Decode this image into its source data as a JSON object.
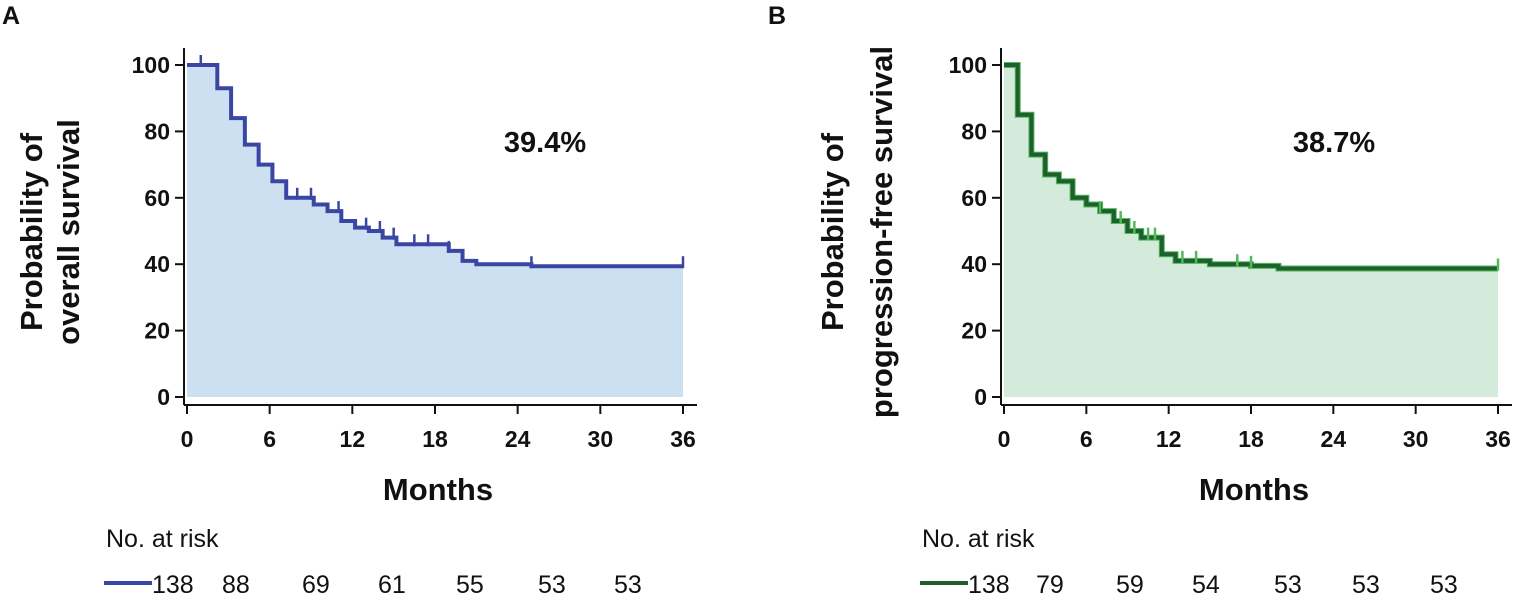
{
  "chart_data": [
    {
      "type": "line",
      "panel_label": "A",
      "title": "",
      "xlabel": "Months",
      "ylabel_lines": [
        "Probability of",
        "overall survival"
      ],
      "xlim": [
        0,
        36
      ],
      "ylim": [
        0,
        100
      ],
      "xticks": [
        0,
        6,
        12,
        18,
        24,
        30,
        36
      ],
      "yticks": [
        0,
        20,
        40,
        60,
        80,
        100
      ],
      "x_tick_labels": [
        "0",
        "6",
        "12",
        "18",
        "24",
        "30",
        "36"
      ],
      "y_tick_labels": [
        "0",
        "20",
        "40",
        "60",
        "80",
        "100"
      ],
      "annotation": "39.4%",
      "grid": false,
      "series": [
        {
          "name": "Overall survival",
          "step_points": [
            [
              0,
              100
            ],
            [
              2.2,
              100
            ],
            [
              2.2,
              93
            ],
            [
              3.2,
              93
            ],
            [
              3.2,
              84
            ],
            [
              4.2,
              84
            ],
            [
              4.2,
              76
            ],
            [
              5.2,
              76
            ],
            [
              5.2,
              70
            ],
            [
              6.2,
              70
            ],
            [
              6.2,
              65
            ],
            [
              7.2,
              65
            ],
            [
              7.2,
              60
            ],
            [
              9.2,
              60
            ],
            [
              9.2,
              58
            ],
            [
              10.2,
              58
            ],
            [
              10.2,
              56
            ],
            [
              11.2,
              56
            ],
            [
              11.2,
              53
            ],
            [
              12.2,
              53
            ],
            [
              12.2,
              51
            ],
            [
              13.2,
              51
            ],
            [
              13.2,
              50
            ],
            [
              14.2,
              50
            ],
            [
              14.2,
              48
            ],
            [
              15.2,
              48
            ],
            [
              15.2,
              46
            ],
            [
              19,
              46
            ],
            [
              19,
              44
            ],
            [
              20,
              44
            ],
            [
              20,
              41
            ],
            [
              21,
              41
            ],
            [
              21,
              40
            ],
            [
              25,
              40
            ],
            [
              25,
              39.4
            ],
            [
              36,
              39.4
            ]
          ],
          "censor_x": [
            1,
            8,
            9,
            11,
            13,
            14,
            15,
            16.5,
            17.5,
            19,
            25,
            36
          ]
        }
      ],
      "risk_table": {
        "header": "No. at risk",
        "values": [
          "138",
          "88",
          "69",
          "61",
          "55",
          "53",
          "53"
        ]
      }
    },
    {
      "type": "line",
      "panel_label": "B",
      "title": "",
      "xlabel": "Months",
      "ylabel_lines": [
        "Probability of",
        "progression-free survival"
      ],
      "xlim": [
        0,
        36
      ],
      "ylim": [
        0,
        100
      ],
      "xticks": [
        0,
        6,
        12,
        18,
        24,
        30,
        36
      ],
      "yticks": [
        0,
        20,
        40,
        60,
        80,
        100
      ],
      "x_tick_labels": [
        "0",
        "6",
        "12",
        "18",
        "24",
        "30",
        "36"
      ],
      "y_tick_labels": [
        "0",
        "20",
        "40",
        "60",
        "80",
        "100"
      ],
      "annotation": "38.7%",
      "grid": false,
      "series": [
        {
          "name": "Progression-free survival",
          "step_points": [
            [
              0,
              100
            ],
            [
              1,
              100
            ],
            [
              1,
              85
            ],
            [
              2,
              85
            ],
            [
              2,
              73
            ],
            [
              3,
              73
            ],
            [
              3,
              67
            ],
            [
              4,
              67
            ],
            [
              4,
              65
            ],
            [
              5,
              65
            ],
            [
              5,
              60
            ],
            [
              6,
              60
            ],
            [
              6,
              58
            ],
            [
              7,
              58
            ],
            [
              7,
              56
            ],
            [
              8,
              56
            ],
            [
              8,
              53
            ],
            [
              9,
              53
            ],
            [
              9,
              50
            ],
            [
              10,
              50
            ],
            [
              10,
              48
            ],
            [
              11.5,
              48
            ],
            [
              11.5,
              43
            ],
            [
              12.5,
              43
            ],
            [
              12.5,
              41
            ],
            [
              15,
              41
            ],
            [
              15,
              40
            ],
            [
              18,
              40
            ],
            [
              18,
              39.5
            ],
            [
              20,
              39.5
            ],
            [
              20,
              38.7
            ],
            [
              36,
              38.7
            ]
          ],
          "censor_x": [
            7,
            8.5,
            9.5,
            10.5,
            11,
            13,
            14,
            17,
            18,
            36
          ]
        }
      ],
      "risk_table": {
        "header": "No. at risk",
        "values": [
          "138",
          "79",
          "59",
          "54",
          "53",
          "53",
          "53"
        ]
      }
    }
  ],
  "colors": {
    "os_line": "#3a46a4",
    "os_fill": "#cde0f2",
    "pfs_line": "#1e5f2b",
    "pfs_line_light": "#52b85e",
    "pfs_fill": "#d4eadb",
    "axis": "#111111"
  }
}
